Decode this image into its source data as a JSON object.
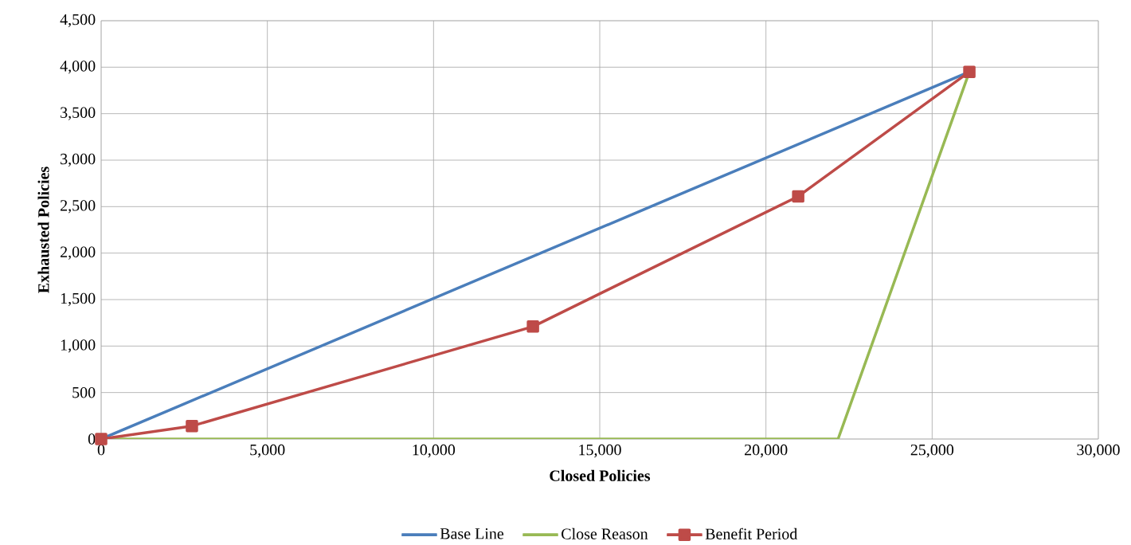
{
  "chart_data": {
    "type": "line",
    "xlabel": "Closed Policies",
    "ylabel": "Exhausted Policies",
    "xlim": [
      0,
      30000
    ],
    "ylim": [
      0,
      4500
    ],
    "xticks": [
      {
        "value": 0,
        "label": "0"
      },
      {
        "value": 5000,
        "label": "5,000"
      },
      {
        "value": 10000,
        "label": "10,000"
      },
      {
        "value": 15000,
        "label": "15,000"
      },
      {
        "value": 20000,
        "label": "20,000"
      },
      {
        "value": 25000,
        "label": "25,000"
      },
      {
        "value": 30000,
        "label": "30,000"
      }
    ],
    "yticks": [
      {
        "value": 0,
        "label": "0"
      },
      {
        "value": 500,
        "label": "500"
      },
      {
        "value": 1000,
        "label": "1,000"
      },
      {
        "value": 1500,
        "label": "1,500"
      },
      {
        "value": 2000,
        "label": "2,000"
      },
      {
        "value": 2500,
        "label": "2,500"
      },
      {
        "value": 3000,
        "label": "3,000"
      },
      {
        "value": 3500,
        "label": "3,500"
      },
      {
        "value": 4000,
        "label": "4,000"
      },
      {
        "value": 4500,
        "label": "4,500"
      }
    ],
    "grid": true,
    "legend": "bottom",
    "series": [
      {
        "name": "Base Line",
        "color": "#4a7ebb",
        "marker": "none",
        "x": [
          0,
          26120
        ],
        "values": [
          0,
          3950
        ]
      },
      {
        "name": "Close Reason",
        "color": "#98b954",
        "marker": "none",
        "x": [
          0,
          22170,
          26120
        ],
        "values": [
          0,
          0,
          3950
        ]
      },
      {
        "name": "Benefit Period",
        "color": "#be4b48",
        "marker": "square",
        "x": [
          0,
          2730,
          12990,
          20970,
          26120
        ],
        "values": [
          0,
          140,
          1210,
          2610,
          3950
        ]
      }
    ]
  }
}
